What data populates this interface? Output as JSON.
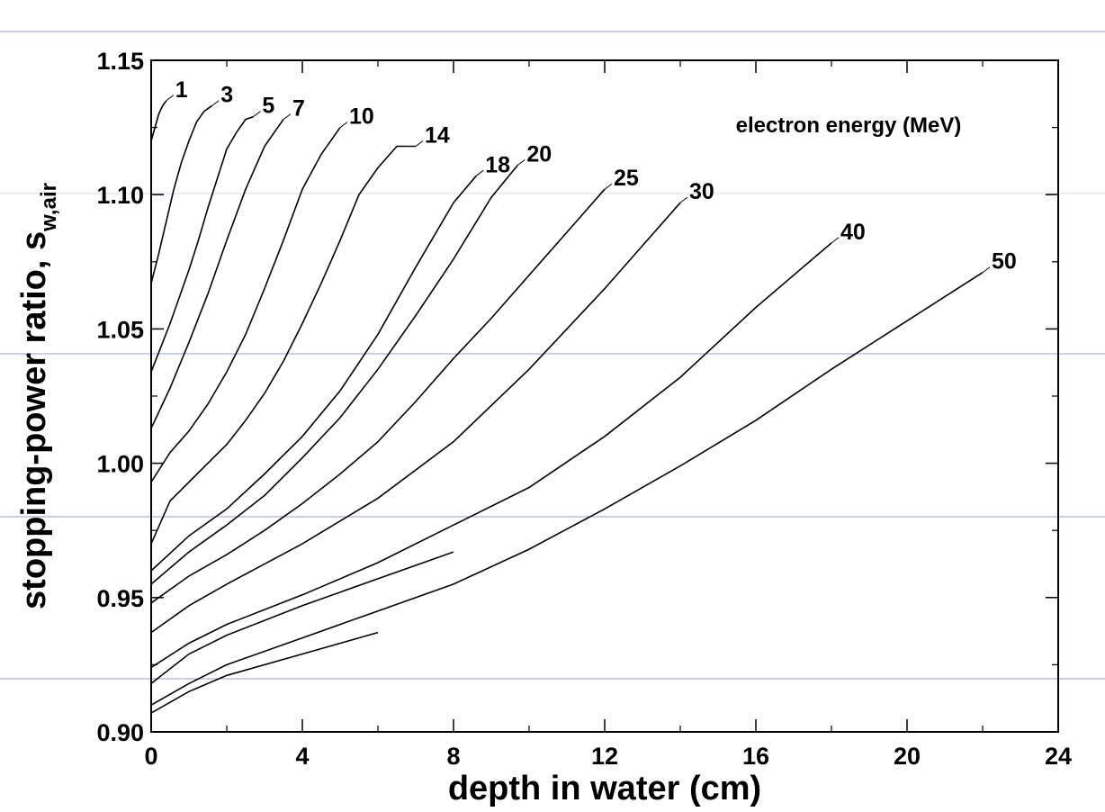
{
  "chart_data": {
    "type": "line",
    "title": "",
    "xlabel": "depth in water (cm)",
    "ylabel": {
      "main": "stopping-power ratio, s",
      "subscript": "w,air"
    },
    "annotation": "electron energy (MeV)",
    "xlim": [
      0,
      24
    ],
    "ylim": [
      0.9,
      1.15
    ],
    "xticks": [
      0,
      4,
      8,
      12,
      16,
      20,
      24
    ],
    "yticks": [
      0.9,
      0.95,
      1.0,
      1.05,
      1.1,
      1.15
    ],
    "xtick_labels": [
      "0",
      "4",
      "8",
      "12",
      "16",
      "20",
      "24"
    ],
    "ytick_labels": [
      "0.90",
      "0.95",
      "1.00",
      "1.05",
      "1.10",
      "1.15"
    ],
    "grid": false,
    "series": [
      {
        "name": "1",
        "x": [
          0,
          0.1,
          0.2,
          0.3,
          0.4
        ],
        "y": [
          1.12,
          1.125,
          1.13,
          1.133,
          1.135
        ]
      },
      {
        "name": "3",
        "x": [
          0,
          0.2,
          0.4,
          0.6,
          0.8,
          1.0,
          1.2,
          1.4,
          1.6
        ],
        "y": [
          1.067,
          1.078,
          1.09,
          1.102,
          1.112,
          1.12,
          1.127,
          1.131,
          1.133
        ]
      },
      {
        "name": "5",
        "x": [
          0,
          0.25,
          0.5,
          0.75,
          1.0,
          1.25,
          1.5,
          1.75,
          2.0,
          2.25,
          2.5,
          2.7
        ],
        "y": [
          1.034,
          1.043,
          1.052,
          1.062,
          1.072,
          1.083,
          1.095,
          1.106,
          1.117,
          1.123,
          1.128,
          1.129
        ]
      },
      {
        "name": "7",
        "x": [
          0,
          0.5,
          1.0,
          1.5,
          2.0,
          2.5,
          3.0,
          3.5
        ],
        "y": [
          1.013,
          1.028,
          1.045,
          1.063,
          1.083,
          1.102,
          1.118,
          1.128
        ]
      },
      {
        "name": "10",
        "x": [
          0,
          0.5,
          1.0,
          1.5,
          2.0,
          2.5,
          3.0,
          3.5,
          4.0,
          4.5,
          5.0
        ],
        "y": [
          0.993,
          1.004,
          1.012,
          1.022,
          1.034,
          1.048,
          1.065,
          1.083,
          1.102,
          1.115,
          1.125
        ]
      },
      {
        "name": "14",
        "x": [
          0,
          0.5,
          1.0,
          1.5,
          2.0,
          2.5,
          3.0,
          3.5,
          4.0,
          4.5,
          5.0,
          5.5,
          6.0,
          6.5,
          7.0
        ],
        "y": [
          0.97,
          0.986,
          0.993,
          1.0,
          1.007,
          1.016,
          1.026,
          1.038,
          1.052,
          1.067,
          1.083,
          1.1,
          1.11,
          1.118,
          1.118
        ]
      },
      {
        "name": "18",
        "x": [
          0,
          1,
          2,
          3,
          4,
          5,
          6,
          7,
          8,
          8.6
        ],
        "y": [
          0.96,
          0.973,
          0.983,
          0.996,
          1.01,
          1.027,
          1.048,
          1.073,
          1.097,
          1.107
        ]
      },
      {
        "name": "20",
        "x": [
          0,
          1,
          2,
          3,
          4,
          5,
          6,
          7,
          8,
          9,
          9.7
        ],
        "y": [
          0.955,
          0.967,
          0.977,
          0.988,
          1.002,
          1.017,
          1.035,
          1.055,
          1.076,
          1.099,
          1.111
        ]
      },
      {
        "name": "25",
        "x": [
          0,
          1,
          2,
          3,
          4,
          5,
          6,
          7,
          8,
          9,
          10,
          11,
          12
        ],
        "y": [
          0.948,
          0.958,
          0.966,
          0.975,
          0.985,
          0.996,
          1.008,
          1.023,
          1.039,
          1.054,
          1.07,
          1.086,
          1.102
        ]
      },
      {
        "name": "30",
        "x": [
          0,
          1,
          2,
          4,
          6,
          8,
          10,
          12,
          14
        ],
        "y": [
          0.937,
          0.947,
          0.955,
          0.97,
          0.987,
          1.008,
          1.035,
          1.065,
          1.097
        ]
      },
      {
        "name": "40",
        "x": [
          0,
          1,
          2,
          4,
          6,
          8,
          10,
          12,
          14,
          16,
          18
        ],
        "y": [
          0.924,
          0.933,
          0.94,
          0.951,
          0.963,
          0.977,
          0.991,
          1.01,
          1.032,
          1.058,
          1.082
        ]
      },
      {
        "name": "50",
        "x": [
          0,
          1,
          2,
          4,
          6,
          8,
          10,
          12,
          14,
          16,
          18,
          20,
          22
        ],
        "y": [
          0.91,
          0.918,
          0.925,
          0.935,
          0.945,
          0.955,
          0.968,
          0.983,
          0.999,
          1.016,
          1.035,
          1.053,
          1.071
        ]
      },
      {
        "name": "",
        "x": [
          0,
          1,
          2,
          4,
          6
        ],
        "y": [
          0.907,
          0.915,
          0.921,
          0.929,
          0.937
        ]
      },
      {
        "name": "",
        "x": [
          0,
          1,
          2,
          4,
          6,
          8
        ],
        "y": [
          0.918,
          0.929,
          0.936,
          0.947,
          0.957,
          0.967
        ]
      }
    ]
  }
}
